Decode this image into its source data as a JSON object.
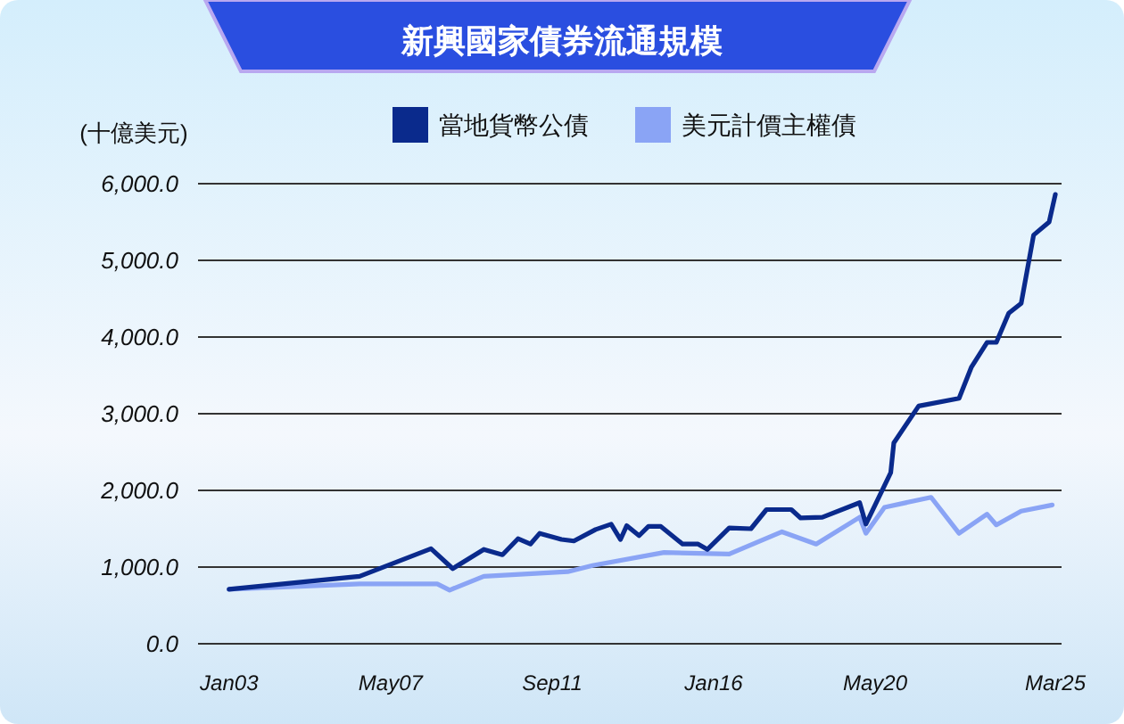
{
  "chart_data": {
    "type": "line",
    "title": "新興國家債券流通規模",
    "ylabel": "(十億美元)",
    "xlim": [
      "2002-03",
      "2025-05"
    ],
    "ylim": [
      0,
      6000
    ],
    "xticks": [
      {
        "value": "2003-01",
        "label": "Jan03"
      },
      {
        "value": "2007-05",
        "label": "May07"
      },
      {
        "value": "2011-09",
        "label": "Sep11"
      },
      {
        "value": "2016-01",
        "label": "Jan16"
      },
      {
        "value": "2020-05",
        "label": "May20"
      },
      {
        "value": "2025-03",
        "label": "Mar25"
      }
    ],
    "yticks": [
      {
        "value": 0,
        "label": "0.0"
      },
      {
        "value": 1000,
        "label": "1,000.0"
      },
      {
        "value": 2000,
        "label": "2,000.0"
      },
      {
        "value": 3000,
        "label": "3,000.0"
      },
      {
        "value": 4000,
        "label": "4,000.0"
      },
      {
        "value": 5000,
        "label": "5,000.0"
      },
      {
        "value": 6000,
        "label": "6,000.0"
      }
    ],
    "grid": "y",
    "legend": "top",
    "series": [
      {
        "name": "當地貨幣公債",
        "color": "#0a2a8c",
        "x": [
          "2003-01",
          "2006-07",
          "2008-06",
          "2009-01",
          "2009-11",
          "2010-05",
          "2010-10",
          "2011-02",
          "2011-05",
          "2011-12",
          "2012-04",
          "2012-11",
          "2013-04",
          "2013-07",
          "2013-09",
          "2014-01",
          "2014-04",
          "2014-08",
          "2015-03",
          "2015-08",
          "2015-11",
          "2016-06",
          "2017-01",
          "2017-06",
          "2018-02",
          "2018-05",
          "2018-12",
          "2019-12",
          "2020-02",
          "2020-10",
          "2020-11",
          "2021-07",
          "2022-08",
          "2022-12",
          "2023-05",
          "2023-08",
          "2023-12",
          "2024-04",
          "2024-08",
          "2025-01",
          "2025-03"
        ],
        "values": [
          710,
          880,
          1240,
          980,
          1230,
          1160,
          1370,
          1300,
          1440,
          1360,
          1340,
          1490,
          1560,
          1360,
          1540,
          1410,
          1530,
          1530,
          1300,
          1300,
          1230,
          1510,
          1500,
          1750,
          1750,
          1640,
          1650,
          1840,
          1560,
          2230,
          2620,
          3100,
          3200,
          3610,
          3930,
          3930,
          4310,
          4440,
          5330,
          5500,
          5860
        ]
      },
      {
        "name": "美元計價主權債",
        "color": "#8aa4f5",
        "x": [
          "2003-01",
          "2006-07",
          "2008-08",
          "2008-12",
          "2009-11",
          "2012-02",
          "2012-10",
          "2014-09",
          "2016-06",
          "2017-11",
          "2018-10",
          "2019-12",
          "2020-02",
          "2020-08",
          "2021-11",
          "2022-08",
          "2023-05",
          "2023-08",
          "2024-04",
          "2025-02"
        ],
        "values": [
          710,
          780,
          780,
          700,
          880,
          940,
          1020,
          1190,
          1170,
          1460,
          1300,
          1650,
          1440,
          1780,
          1910,
          1440,
          1690,
          1550,
          1730,
          1810
        ]
      }
    ]
  }
}
